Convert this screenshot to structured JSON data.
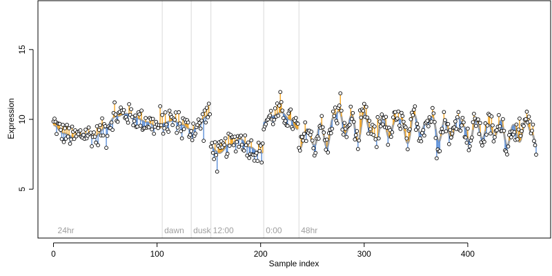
{
  "chart_data": {
    "type": "scatter",
    "title": "",
    "xlabel": "Sample index",
    "ylabel": "Expression",
    "xlim": [
      -15,
      480
    ],
    "ylim": [
      1.5,
      18.5
    ],
    "x_ticks": [
      0,
      100,
      200,
      300,
      400
    ],
    "y_ticks": [
      5,
      10,
      15
    ],
    "grid": false,
    "legend": "none",
    "phase_markers": [
      {
        "x": 105,
        "label": "dawn"
      },
      {
        "x": 133,
        "label": "dusk"
      },
      {
        "x": 152,
        "label": "12:00"
      },
      {
        "x": 203,
        "label": "0:00"
      },
      {
        "x": 237,
        "label": "48hr"
      }
    ],
    "phase_start_label": {
      "x": 2,
      "label": "24hr"
    },
    "colors": {
      "point_fill": "#ffffff",
      "point_stroke": "#000000",
      "above_fit": "#f5a623",
      "below_fit": "#5b8fd9",
      "fit_line": "#a0a0a0",
      "phase_line": "#d9d9d9",
      "phase_text": "#9e9e9e"
    },
    "segments": [
      {
        "x": [
          0,
          10,
          20,
          30,
          40,
          50,
          60,
          70,
          80,
          90,
          100,
          104
        ],
        "y": [
          9.6,
          9.0,
          8.7,
          9.0,
          8.8,
          9.4,
          10.2,
          10.4,
          10.1,
          9.8,
          9.5,
          9.4
        ]
      },
      {
        "x": [
          105,
          115,
          125,
          132
        ],
        "y": [
          9.7,
          9.9,
          9.6,
          9.3
        ]
      },
      {
        "x": [
          133,
          140,
          147,
          151
        ],
        "y": [
          9.2,
          9.5,
          10.2,
          10.4
        ]
      },
      {
        "x": [
          152,
          160,
          170,
          180,
          190,
          197,
          202
        ],
        "y": [
          8.0,
          7.6,
          8.2,
          8.6,
          8.0,
          7.7,
          7.6
        ]
      },
      {
        "x": [
          203,
          210,
          220,
          228,
          236
        ],
        "y": [
          9.8,
          10.2,
          10.5,
          10.0,
          9.3
        ]
      },
      {
        "x": [
          237,
          245,
          252,
          258,
          264,
          270,
          276,
          282,
          288,
          294,
          300,
          306,
          312,
          318,
          324,
          330,
          336,
          342,
          348,
          354,
          360,
          366,
          372,
          378,
          384,
          390,
          396,
          402,
          408,
          414,
          420,
          426,
          432,
          438,
          444,
          450,
          456,
          462,
          466
        ],
        "y": [
          7.8,
          9.3,
          8.1,
          9.7,
          8.0,
          10.1,
          10.6,
          9.0,
          10.3,
          8.4,
          10.5,
          9.1,
          8.6,
          10.3,
          8.7,
          9.9,
          10.0,
          8.3,
          10.4,
          9.0,
          9.8,
          10.2,
          8.4,
          10.0,
          8.6,
          10.2,
          9.5,
          8.4,
          10.1,
          8.6,
          9.7,
          8.8,
          9.9,
          8.1,
          9.6,
          8.4,
          9.9,
          9.0,
          8.2
        ]
      }
    ]
  }
}
